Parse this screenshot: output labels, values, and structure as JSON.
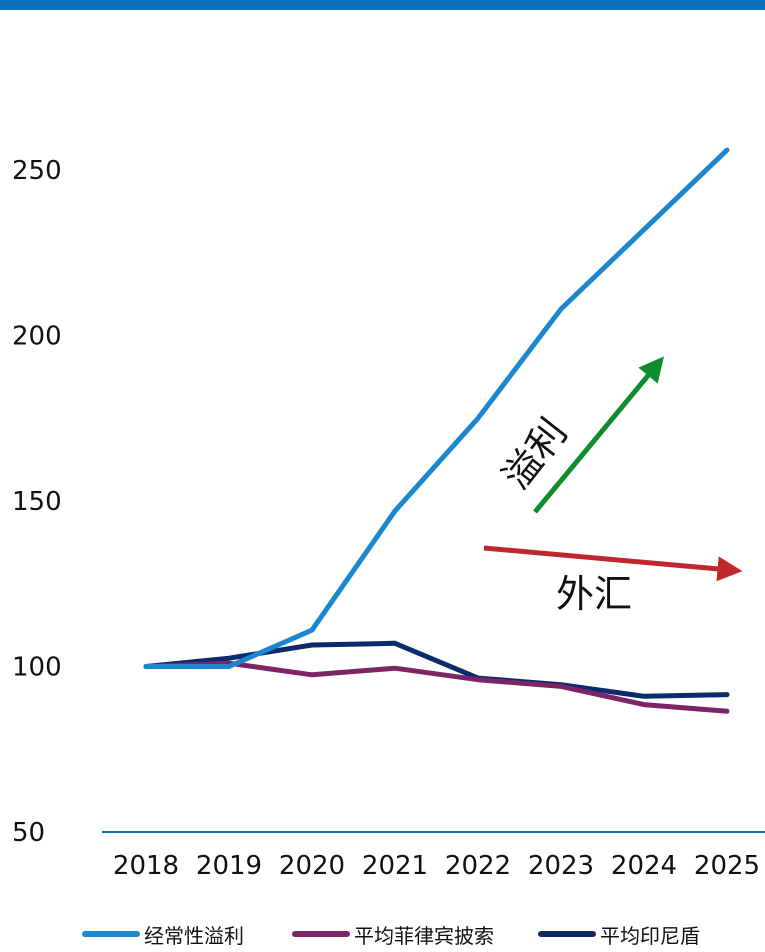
{
  "colors": {
    "top_bar": "#0b72b9",
    "axis": "#0b72b9",
    "profit_arrow": "#0f8c2e",
    "fx_arrow": "#c0272d"
  },
  "chart_data": {
    "type": "line",
    "title": "",
    "xlabel": "",
    "ylabel": "",
    "categories": [
      "2018",
      "2019",
      "2020",
      "2021",
      "2022",
      "2023",
      "2024",
      "2025"
    ],
    "y_ticks": [
      50,
      100,
      150,
      200,
      250
    ],
    "ylim": [
      50,
      250
    ],
    "grid": false,
    "legend_position": "bottom",
    "series": [
      {
        "name": "经常性溢利",
        "color": "#1a87cf",
        "values": [
          100,
          100,
          111,
          147,
          175,
          208,
          232,
          256
        ]
      },
      {
        "name": "平均菲律宾披索",
        "color": "#7b2466",
        "values": [
          100,
          101,
          97.5,
          99.5,
          96,
          94,
          88.5,
          86.5
        ]
      },
      {
        "name": "平均印尼盾",
        "color": "#0c2b6b",
        "values": [
          100,
          102.5,
          106.5,
          107,
          96.5,
          94.5,
          91,
          91.5
        ]
      }
    ],
    "annotations": [
      {
        "text": "溢利",
        "meaning": "profit rising",
        "color": "#0f8c2e"
      },
      {
        "text": "外汇",
        "meaning": "fx falling",
        "color": "#c0272d"
      }
    ]
  }
}
